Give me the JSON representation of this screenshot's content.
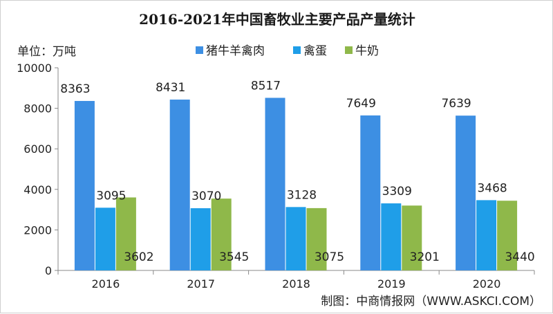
{
  "chart_data": {
    "type": "bar",
    "title": "2016-2021年中国畜牧业主要产品产量统计",
    "unit_label": "单位：万吨",
    "categories": [
      "2016",
      "2017",
      "2018",
      "2019",
      "2020"
    ],
    "series": [
      {
        "name": "猪牛羊禽肉",
        "color": "#3d8fe3",
        "values": [
          8363,
          8431,
          8517,
          7649,
          7639
        ]
      },
      {
        "name": "禽蛋",
        "color": "#1f9ee8",
        "values": [
          3095,
          3070,
          3128,
          3309,
          3468
        ]
      },
      {
        "name": "牛奶",
        "color": "#8fb84a",
        "values": [
          3602,
          3545,
          3075,
          3201,
          3440
        ]
      }
    ],
    "ylim": [
      0,
      10000
    ],
    "yticks": [
      0,
      2000,
      4000,
      6000,
      8000,
      10000
    ],
    "grid": false,
    "legend_position": "top-center"
  },
  "source": "制图：中商情报网（WWW.ASKCI.COM）"
}
